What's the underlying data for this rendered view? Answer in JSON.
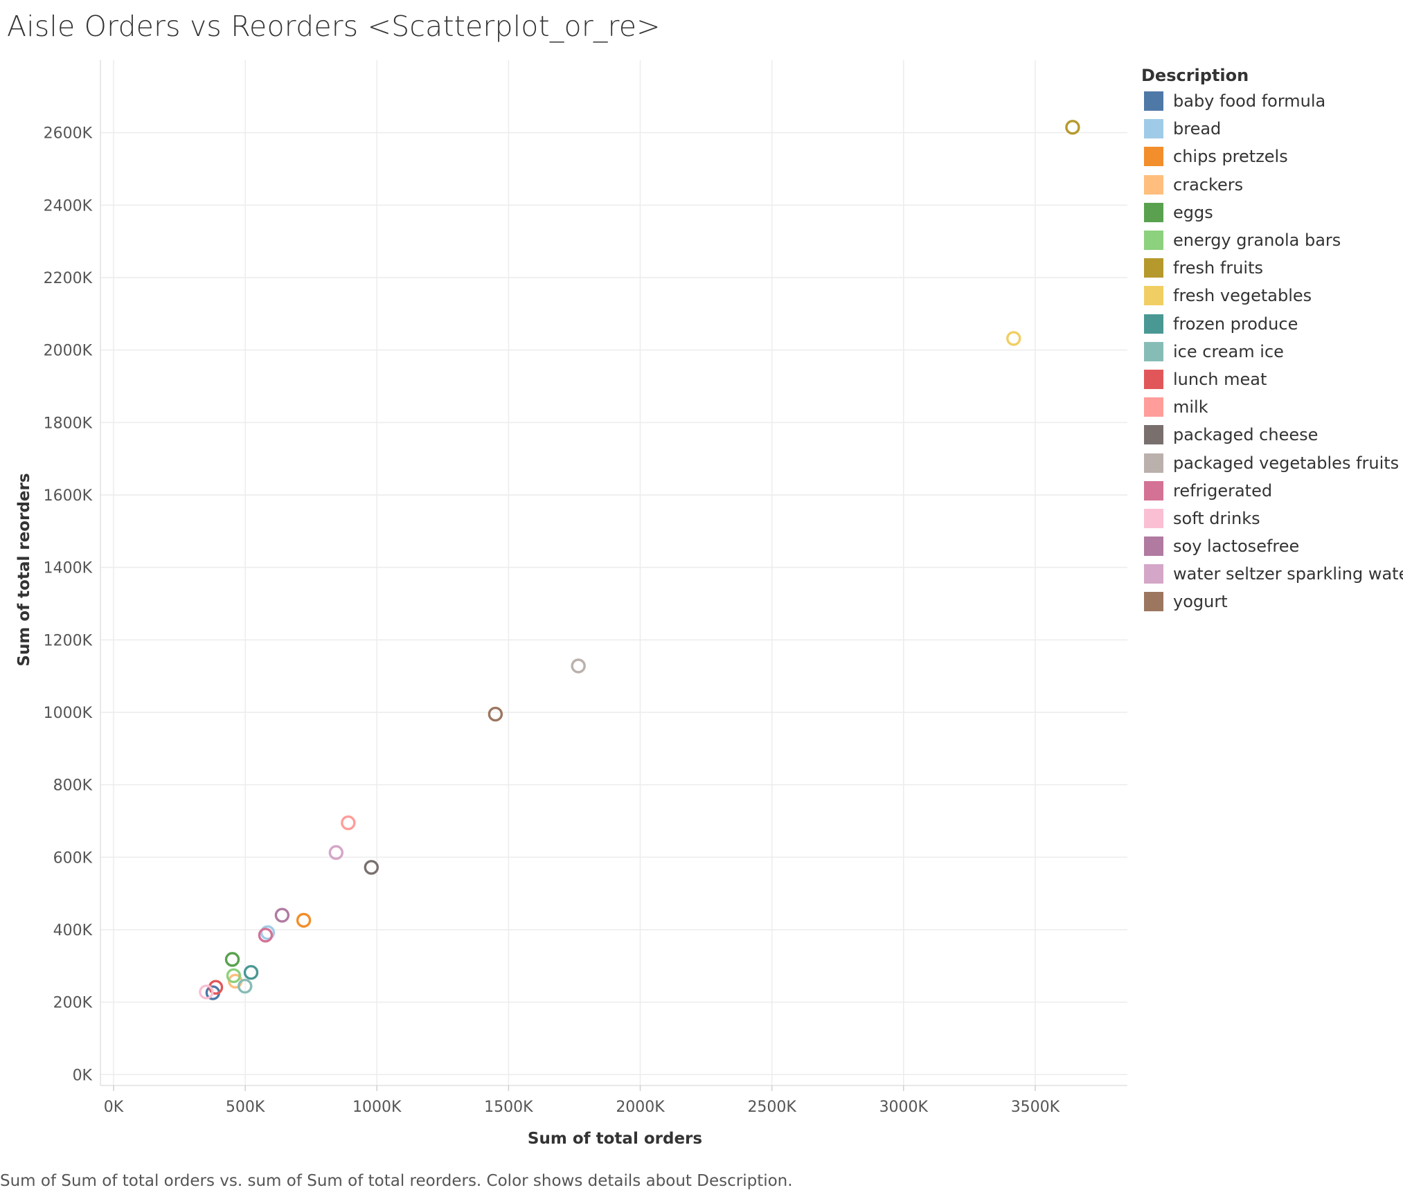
{
  "title": "Aisle Orders vs Reorders <Scatterplot_or_re>",
  "caption": "Sum of Sum of total orders vs. sum of Sum of total reorders.  Color shows details about Description.",
  "chart_data": {
    "type": "scatter",
    "title": "Aisle Orders vs Reorders <Scatterplot_or_re>",
    "xlabel": "Sum of total orders",
    "ylabel": "Sum of total reorders",
    "xlim": [
      -50,
      3850
    ],
    "ylim": [
      -30,
      2800
    ],
    "x_ticks": [
      0,
      500,
      1000,
      1500,
      2000,
      2500,
      3000,
      3500
    ],
    "x_tick_labels": [
      "0K",
      "500K",
      "1000K",
      "1500K",
      "2000K",
      "2500K",
      "3000K",
      "3500K"
    ],
    "y_ticks": [
      0,
      200,
      400,
      600,
      800,
      1000,
      1200,
      1400,
      1600,
      1800,
      2000,
      2200,
      2400,
      2600
    ],
    "y_tick_labels": [
      "0K",
      "200K",
      "400K",
      "600K",
      "800K",
      "1000K",
      "1200K",
      "1400K",
      "1600K",
      "1800K",
      "2000K",
      "2200K",
      "2400K",
      "2600K"
    ],
    "grid": true,
    "legend_title": "Description",
    "legend_position": "right",
    "series": [
      {
        "name": "baby food formula",
        "color": "#4e79a7",
        "x": 377,
        "y": 226
      },
      {
        "name": "bread",
        "color": "#a0cbe8",
        "x": 585,
        "y": 392
      },
      {
        "name": "chips pretzels",
        "color": "#f28e2b",
        "x": 722,
        "y": 426
      },
      {
        "name": "crackers",
        "color": "#ffbe7d",
        "x": 462,
        "y": 258
      },
      {
        "name": "eggs",
        "color": "#59a14f",
        "x": 451,
        "y": 318
      },
      {
        "name": "energy granola bars",
        "color": "#8cd17d",
        "x": 456,
        "y": 273
      },
      {
        "name": "fresh fruits",
        "color": "#b6992d",
        "x": 3642,
        "y": 2615
      },
      {
        "name": "fresh vegetables",
        "color": "#f1ce63",
        "x": 3418,
        "y": 2032
      },
      {
        "name": "frozen produce",
        "color": "#499894",
        "x": 522,
        "y": 282
      },
      {
        "name": "ice cream ice",
        "color": "#86bcb6",
        "x": 499,
        "y": 244
      },
      {
        "name": "lunch meat",
        "color": "#e15759",
        "x": 388,
        "y": 241
      },
      {
        "name": "milk",
        "color": "#ff9d9a",
        "x": 891,
        "y": 695
      },
      {
        "name": "packaged cheese",
        "color": "#79706e",
        "x": 979,
        "y": 572
      },
      {
        "name": "packaged vegetables fruits",
        "color": "#bab0ac",
        "x": 1765,
        "y": 1128
      },
      {
        "name": "refrigerated",
        "color": "#d37295",
        "x": 577,
        "y": 385
      },
      {
        "name": "soft drinks",
        "color": "#fabfd2",
        "x": 352,
        "y": 228
      },
      {
        "name": "soy lactosefree",
        "color": "#b07aa1",
        "x": 640,
        "y": 440
      },
      {
        "name": "water seltzer sparkling water",
        "color": "#d4a6c8",
        "x": 845,
        "y": 613
      },
      {
        "name": "yogurt",
        "color": "#9d7660",
        "x": 1450,
        "y": 995
      }
    ]
  }
}
